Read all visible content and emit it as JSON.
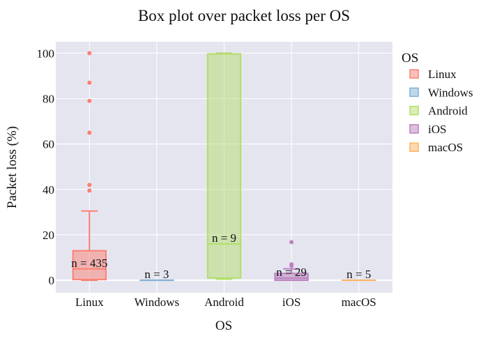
{
  "chart_data": {
    "type": "box",
    "title": "Box plot over packet loss per OS",
    "xlabel": "OS",
    "ylabel": "Packet loss (%)",
    "ylim": [
      -5.5,
      105
    ],
    "yticks": [
      0,
      20,
      40,
      60,
      80,
      100
    ],
    "grid": true,
    "legend": {
      "title": "OS",
      "placement": "right"
    },
    "categories": [
      "Linux",
      "Windows",
      "Android",
      "iOS",
      "macOS"
    ],
    "series": [
      {
        "name": "Linux",
        "color": "#fb8072",
        "min": 0,
        "q1": 0.3,
        "median": 5,
        "q3": 13,
        "max": 30.5,
        "outliers": [
          39.5,
          42,
          65,
          79,
          87,
          100
        ],
        "n_label": "n = 435"
      },
      {
        "name": "Windows",
        "color": "#80b1d3",
        "min": 0,
        "q1": 0,
        "median": 0,
        "q3": 0,
        "max": 0,
        "outliers": [],
        "n_label": "n = 3"
      },
      {
        "name": "Android",
        "color": "#b3de69",
        "min": 0.5,
        "q1": 1,
        "median": 16,
        "q3": 99.7,
        "max": 100,
        "outliers": [],
        "n_label": "n = 9"
      },
      {
        "name": "iOS",
        "color": "#bc80bd",
        "min": 0,
        "q1": 0,
        "median": 1,
        "q3": 3,
        "max": 5,
        "outliers": [
          6.3,
          7,
          16.8
        ],
        "n_label": "n = 29"
      },
      {
        "name": "macOS",
        "color": "#fdb462",
        "min": 0,
        "q1": 0,
        "median": 0,
        "q3": 0,
        "max": 0,
        "outliers": [],
        "n_label": "n = 5"
      }
    ]
  }
}
